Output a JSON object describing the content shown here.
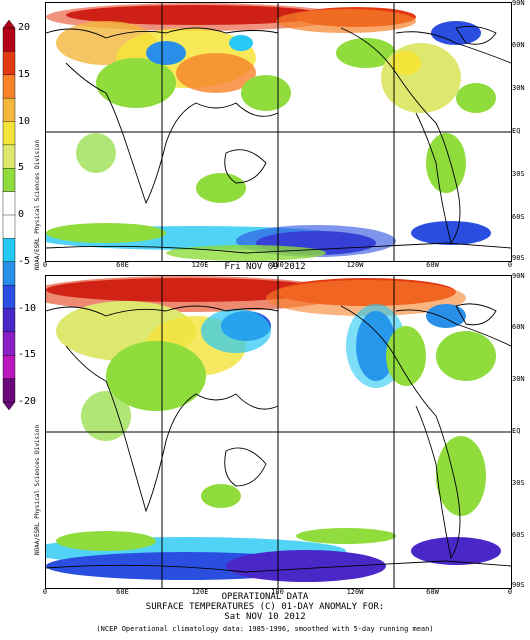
{
  "colorbar": {
    "ticks": [
      "20",
      "15",
      "10",
      "5",
      "0",
      "-5",
      "-10",
      "-15",
      "-20"
    ],
    "colors": [
      "#b40018",
      "#e33a14",
      "#f7822a",
      "#f3b73c",
      "#f4e43a",
      "#dfe86e",
      "#8fdc3c",
      "#ffffff",
      "#ffffff",
      "#26c8f4",
      "#2a8fe8",
      "#2a4fe0",
      "#4a28c8",
      "#8a1fc4",
      "#b818bc",
      "#6a0a7a"
    ]
  },
  "panels": [
    {
      "id": "top",
      "date_title": "Fri NOV 09 2012",
      "credit": "NOAA/ESRL Physical Sciences Division"
    },
    {
      "id": "bottom",
      "date_title": "Sat NOV 10 2012",
      "credit": "NOAA/ESRL Physical Sciences Division"
    }
  ],
  "lat_labels": [
    "90N",
    "60N",
    "30N",
    "EQ",
    "30S",
    "60S",
    "90S"
  ],
  "lon_labels": [
    "0",
    "60E",
    "120E",
    "180",
    "120W",
    "60W",
    "0"
  ],
  "footer": {
    "line1": "OPERATIONAL DATA",
    "line2": "SURFACE TEMPERATURES (C)    01-DAY ANOMALY FOR:",
    "line3": "Sat NOV 10 2012",
    "line4": "(NCEP Operational climatology data: 1985-1996, smoothed with 5-day running mean)"
  }
}
